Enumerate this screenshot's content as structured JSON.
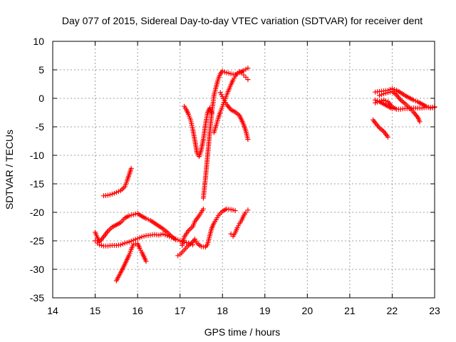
{
  "chart_data": {
    "type": "scatter",
    "title": "Day 077 of 2015, Sidereal Day-to-day VTEC variation (SDTVAR) for receiver dent",
    "xlabel": "GPS time / hours",
    "ylabel": "SDTVAR / TECUs",
    "xlim": [
      14,
      23
    ],
    "ylim": [
      -35,
      10
    ],
    "xticks": [
      "14",
      "15",
      "16",
      "17",
      "18",
      "19",
      "20",
      "21",
      "22",
      "23"
    ],
    "yticks": [
      "10",
      "5",
      "0",
      "-5",
      "-10",
      "-15",
      "-20",
      "-25",
      "-30",
      "-35"
    ],
    "grid": true,
    "marker": "plus",
    "color": "#ff0000",
    "series": [
      {
        "x": [
          15.0,
          15.05,
          15.1,
          15.2,
          15.3,
          15.4,
          15.5,
          15.6,
          15.7,
          15.8,
          15.9,
          16.0,
          16.1,
          16.2,
          16.3,
          16.4,
          16.5,
          16.6,
          16.7,
          16.8,
          16.9,
          17.0,
          17.1,
          17.2,
          17.3
        ],
        "y": [
          -25.0,
          -25.4,
          -25.7,
          -25.9,
          -25.9,
          -25.8,
          -25.8,
          -25.7,
          -25.4,
          -25.2,
          -24.9,
          -24.6,
          -24.3,
          -24.1,
          -24.0,
          -23.9,
          -24.0,
          -23.8,
          -24.1,
          -24.4,
          -24.7,
          -25.0,
          -25.2,
          -25.4,
          -25.7
        ]
      },
      {
        "x": [
          15.0,
          15.05,
          15.1,
          15.2,
          15.3,
          15.4,
          15.5,
          15.6,
          15.7,
          15.8,
          15.9,
          16.0,
          16.1,
          16.2,
          16.3,
          16.4,
          16.5,
          16.6,
          16.7,
          16.8,
          16.9
        ],
        "y": [
          -23.5,
          -24.4,
          -25.2,
          -24.3,
          -23.3,
          -22.6,
          -22.2,
          -21.8,
          -21.0,
          -20.6,
          -20.4,
          -20.2,
          -20.7,
          -21.1,
          -21.4,
          -21.9,
          -22.4,
          -22.9,
          -23.5,
          -24.2,
          -24.8
        ]
      },
      {
        "x": [
          15.2,
          15.3,
          15.4,
          15.5,
          15.6,
          15.7,
          15.75,
          15.8,
          15.85
        ],
        "y": [
          -17.1,
          -17.0,
          -16.8,
          -16.5,
          -16.2,
          -15.5,
          -14.5,
          -13.4,
          -12.3
        ]
      },
      {
        "x": [
          15.5,
          15.6,
          15.7,
          15.8,
          15.85,
          15.9,
          16.0,
          16.05,
          16.1,
          16.15,
          16.2
        ],
        "y": [
          -32.0,
          -30.6,
          -29.1,
          -27.5,
          -26.5,
          -25.6,
          -25.5,
          -26.3,
          -27.0,
          -27.8,
          -28.6
        ]
      },
      {
        "x": [
          16.95,
          17.0,
          17.1,
          17.2,
          17.3,
          17.35,
          17.4,
          17.5,
          17.6,
          17.65,
          17.7,
          17.75,
          17.8,
          17.85,
          17.9,
          18.0,
          18.1,
          18.2,
          18.3
        ],
        "y": [
          -27.6,
          -27.4,
          -26.6,
          -25.8,
          -25.2,
          -24.7,
          -25.4,
          -26.0,
          -26.1,
          -25.6,
          -24.1,
          -22.7,
          -21.9,
          -21.3,
          -20.6,
          -19.8,
          -19.4,
          -19.5,
          -19.7
        ]
      },
      {
        "x": [
          17.05,
          17.1,
          17.2,
          17.3,
          17.35,
          17.4,
          17.45,
          17.5,
          17.55
        ],
        "y": [
          -25.8,
          -24.3,
          -23.2,
          -22.5,
          -21.6,
          -21.1,
          -20.6,
          -20.0,
          -19.4
        ]
      },
      {
        "x": [
          18.2,
          18.25,
          18.3,
          18.35,
          18.4,
          18.45,
          18.5,
          18.55,
          18.6
        ],
        "y": [
          -23.8,
          -24.2,
          -23.6,
          -22.7,
          -22.0,
          -21.4,
          -20.6,
          -20.0,
          -19.6
        ]
      },
      {
        "x": [
          17.55,
          17.6,
          17.65,
          17.7,
          17.75,
          17.8,
          17.85,
          17.9,
          17.95,
          18.0,
          18.05,
          18.1,
          18.2,
          18.3,
          18.4,
          18.5,
          18.55,
          18.6
        ],
        "y": [
          -17.5,
          -14.0,
          -10.0,
          -6.0,
          -2.5,
          0.5,
          2.0,
          3.4,
          4.3,
          4.8,
          4.6,
          4.5,
          4.3,
          4.2,
          4.5,
          4.9,
          5.1,
          5.3
        ]
      },
      {
        "x": [
          17.1,
          17.15,
          17.2,
          17.25,
          17.3,
          17.35,
          17.4,
          17.45,
          17.5,
          17.55,
          17.6,
          17.65,
          17.7,
          17.75
        ],
        "y": [
          -1.4,
          -2.0,
          -2.8,
          -3.8,
          -5.4,
          -7.4,
          -9.6,
          -10.2,
          -9.1,
          -7.2,
          -4.6,
          -2.5,
          -1.7,
          -2.6
        ]
      },
      {
        "x": [
          17.8,
          17.85,
          17.9,
          17.95,
          18.0,
          18.05,
          18.1,
          18.15,
          18.2,
          18.25,
          18.3,
          18.35,
          18.4,
          18.45,
          18.5,
          18.55,
          18.6
        ],
        "y": [
          -6.0,
          -4.8,
          -3.5,
          -2.4,
          -1.4,
          -0.4,
          0.6,
          1.5,
          2.4,
          3.2,
          3.9,
          4.4,
          4.7,
          4.5,
          4.1,
          3.7,
          3.3
        ]
      },
      {
        "x": [
          17.95,
          18.0,
          18.05,
          18.1,
          18.2,
          18.3,
          18.4,
          18.45,
          18.5,
          18.55,
          18.6
        ],
        "y": [
          1.0,
          0.3,
          -0.4,
          -1.1,
          -2.0,
          -2.4,
          -3.0,
          -3.8,
          -4.6,
          -5.7,
          -7.2
        ]
      },
      {
        "x": [
          21.55,
          21.6,
          21.7,
          21.8,
          21.9
        ],
        "y": [
          -3.8,
          -4.3,
          -5.2,
          -5.8,
          -6.8
        ]
      },
      {
        "x": [
          21.6,
          21.7,
          21.8,
          21.9,
          22.0,
          22.1,
          22.2,
          22.3,
          22.4,
          22.5,
          22.6,
          22.7,
          22.8,
          22.9,
          23.0
        ],
        "y": [
          1.1,
          1.2,
          1.3,
          1.4,
          1.7,
          1.4,
          1.0,
          0.5,
          0.1,
          -0.3,
          -0.6,
          -1.0,
          -1.4,
          -1.7,
          -1.6
        ]
      },
      {
        "x": [
          21.6,
          21.7,
          21.8,
          21.9,
          22.0,
          22.1,
          22.2,
          22.3,
          22.4,
          22.5,
          22.6,
          22.7,
          22.8,
          22.9,
          23.0
        ],
        "y": [
          -0.8,
          -0.5,
          -0.3,
          -0.6,
          -1.5,
          -1.9,
          -1.9,
          -1.8,
          -1.8,
          -1.7,
          -1.7,
          -1.7,
          -1.6,
          -1.6,
          -1.5
        ]
      },
      {
        "x": [
          21.7,
          21.8,
          21.9,
          22.0,
          22.1,
          22.2,
          22.3,
          22.4,
          22.5,
          22.6,
          22.65
        ],
        "y": [
          0.5,
          0.8,
          1.0,
          1.2,
          0.6,
          -0.3,
          -0.9,
          -1.6,
          -2.4,
          -3.3,
          -4.1
        ]
      },
      {
        "x": [
          21.6,
          21.7,
          21.8,
          21.9,
          22.0
        ],
        "y": [
          -0.3,
          -0.6,
          -1.0,
          -1.4,
          -1.8
        ]
      }
    ]
  }
}
